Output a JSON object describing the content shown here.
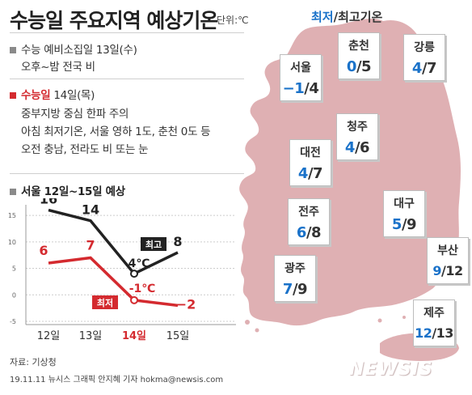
{
  "header": {
    "title": "수능일 주요지역 예상기온",
    "unit_label": "단위:℃",
    "legend_min": "최저",
    "legend_sep": "/",
    "legend_max": "최고기온"
  },
  "notes": {
    "day1_label": "수능 예비소집일",
    "day1_date": "13일(수)",
    "day1_detail": "오후~밤 전국 비",
    "day2_label": "수능일",
    "day2_date": "14일(목)",
    "day2_line1": "중부지방 중심 한파 주의",
    "day2_line2": "아침 최저기온, 서울 영하 1도, 춘천 0도 등",
    "day2_line3": "오전 충남, 전라도 비 또는 눈",
    "chart_heading": "서울 12일~15일 예상"
  },
  "chart_data": {
    "type": "line",
    "title": "서울 12일~15일 예상",
    "categories": [
      "12일",
      "13일",
      "14일",
      "15일"
    ],
    "highlight_category": "14일",
    "ylim": [
      -5,
      17
    ],
    "yticks": [
      15,
      10,
      5,
      0,
      -5
    ],
    "grid": true,
    "series": [
      {
        "name": "최고",
        "values": [
          16,
          14,
          4,
          8
        ],
        "labels": [
          "16",
          "14",
          "4℃",
          "8"
        ],
        "color": "#222222"
      },
      {
        "name": "최저",
        "values": [
          6,
          7,
          -1,
          -2
        ],
        "labels": [
          "6",
          "7",
          "-1℃",
          "−2"
        ],
        "color": "#d42a2f"
      }
    ]
  },
  "cities": [
    {
      "name": "서울",
      "min": "−1",
      "max": "4"
    },
    {
      "name": "춘천",
      "min": "0",
      "max": "5"
    },
    {
      "name": "강릉",
      "min": "4",
      "max": "7"
    },
    {
      "name": "청주",
      "min": "4",
      "max": "6"
    },
    {
      "name": "대전",
      "min": "4",
      "max": "7"
    },
    {
      "name": "대구",
      "min": "5",
      "max": "9"
    },
    {
      "name": "전주",
      "min": "6",
      "max": "8"
    },
    {
      "name": "광주",
      "min": "7",
      "max": "9"
    },
    {
      "name": "부산",
      "min": "9",
      "max": "12"
    },
    {
      "name": "제주",
      "min": "12",
      "max": "13"
    }
  ],
  "footer": {
    "source": "자료: 기상청",
    "credit": "19.11.11 뉴시스 그래픽 안지혜 기자 hokma@newsis.com",
    "logo": "NEWSIS"
  },
  "colors": {
    "map": "#dfb0b3",
    "min_blue": "#1a72c9",
    "accent_red": "#d42a2f"
  }
}
